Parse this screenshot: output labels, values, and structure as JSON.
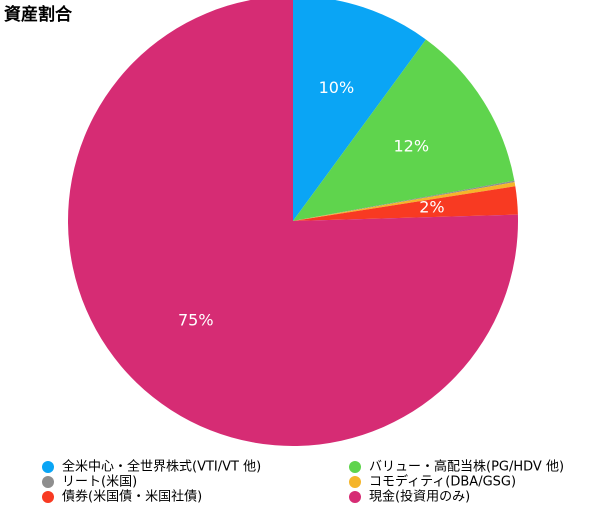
{
  "chart_data": {
    "type": "pie",
    "title": "資産割合",
    "categories": [
      "全米中心・全世界株式(VTI/VT 他)",
      "バリュー・高配当株(PG/HDV 他)",
      "リート(米国)",
      "コモディティ(DBA/GSG)",
      "債券(米国債・米国社債)",
      "現金(投資用のみ)"
    ],
    "values": [
      10,
      12,
      0.1,
      0.3,
      2,
      75
    ],
    "value_labels": [
      "10%",
      "12%",
      null,
      null,
      "2%",
      "75%"
    ],
    "colors": [
      "#0aa5f5",
      "#5fd44d",
      "#8e8e8e",
      "#f5b52a",
      "#f83a22",
      "#d62c74"
    ]
  }
}
